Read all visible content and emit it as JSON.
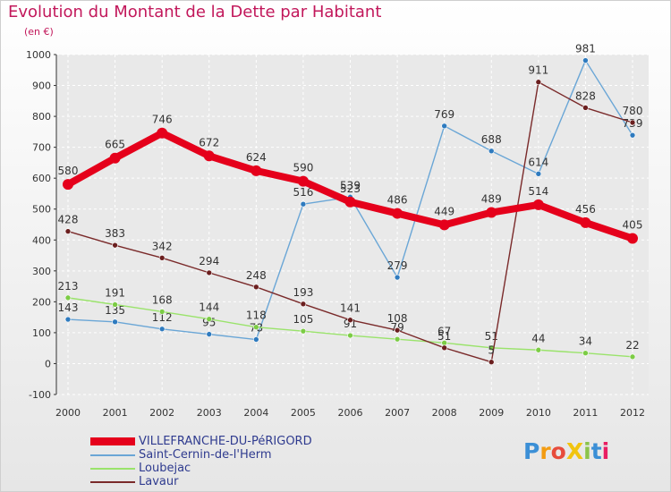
{
  "header": {
    "title": "Evolution du Montant de la Dette par Habitant",
    "unit": "(en €)"
  },
  "logo": {
    "text": "ProXiti",
    "letters": [
      {
        "ch": "P",
        "color": "#3b8fd6"
      },
      {
        "ch": "r",
        "color": "#f39c12"
      },
      {
        "ch": "o",
        "color": "#e74c3c"
      },
      {
        "ch": "X",
        "color": "#f1c40f"
      },
      {
        "ch": "i",
        "color": "#8bc34a"
      },
      {
        "ch": "t",
        "color": "#3b8fd6"
      },
      {
        "ch": "i",
        "color": "#e91e63"
      }
    ]
  },
  "colors": {
    "title": "#c2185b",
    "axis_labels": "#333333",
    "legend_text": "#2f3b8f",
    "gridline": "#ffffff"
  },
  "chart_data": {
    "type": "line",
    "title": "Evolution du Montant de la Dette par Habitant",
    "ylabel": "(en €)",
    "xlabel": "",
    "x": [
      2000,
      2001,
      2002,
      2003,
      2004,
      2005,
      2006,
      2007,
      2008,
      2009,
      2010,
      2011,
      2012
    ],
    "ylim": [
      -100,
      1000
    ],
    "yticks": [
      -100,
      0,
      100,
      200,
      300,
      400,
      500,
      600,
      700,
      800,
      900,
      1000
    ],
    "grid": true,
    "legend_position": "bottom-left",
    "series": [
      {
        "name": "VILLEFRANCHE-DU-PéRIGORD",
        "color": "#e5001b",
        "marker": "#e5001b",
        "emphasis": true,
        "values": [
          580,
          665,
          746,
          672,
          624,
          590,
          523,
          486,
          449,
          489,
          514,
          456,
          405
        ],
        "labels": [
          "580",
          "665",
          "746",
          "672",
          "624",
          "590",
          "523",
          "486",
          "449",
          "489",
          "514",
          "456",
          "405"
        ]
      },
      {
        "name": "Saint-Cernin-de-l'Herm",
        "color": "#6aa6d6",
        "marker": "#2f7bbf",
        "emphasis": false,
        "values": [
          143,
          135,
          112,
          95,
          78,
          516,
          539,
          279,
          769,
          688,
          614,
          981,
          739
        ],
        "labels": [
          "143",
          "135",
          "112",
          "95",
          "78",
          "516",
          "539",
          "279",
          "769",
          "688",
          "614",
          "981",
          "739"
        ]
      },
      {
        "name": "Loubejac",
        "color": "#9ae36b",
        "marker": "#7ccc45",
        "emphasis": false,
        "values": [
          213,
          191,
          168,
          144,
          118,
          105,
          91,
          79,
          67,
          51,
          44,
          34,
          22
        ],
        "labels": [
          "213",
          "191",
          "168",
          "144",
          "118",
          "105",
          "91",
          "79",
          "67",
          "51",
          "44",
          "34",
          "22"
        ]
      },
      {
        "name": "Lavaur",
        "color": "#7a2a2a",
        "marker": "#6b1f1f",
        "emphasis": false,
        "values": [
          428,
          383,
          342,
          294,
          248,
          193,
          141,
          108,
          51,
          5,
          911,
          828,
          780
        ],
        "labels": [
          "428",
          "383",
          "342",
          "294",
          "248",
          "193",
          "141",
          "108",
          "51",
          "5",
          "911",
          "828",
          "780"
        ]
      }
    ]
  }
}
